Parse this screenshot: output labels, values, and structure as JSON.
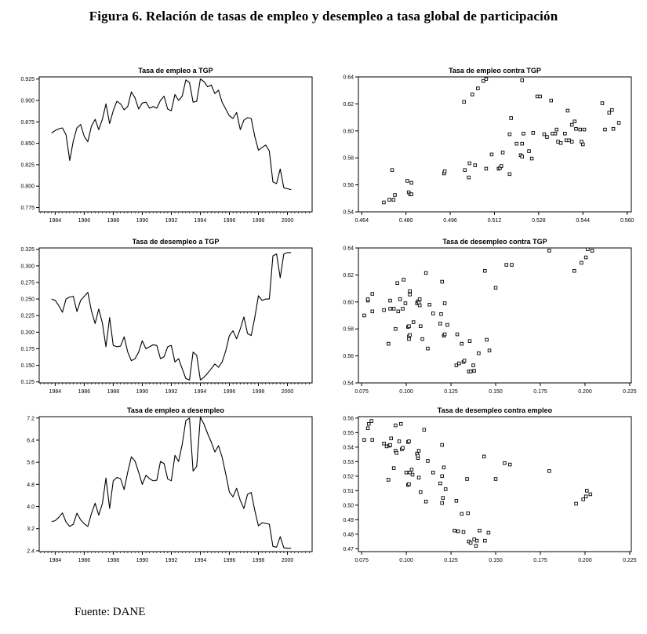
{
  "figure": {
    "title": "Figura 6. Relación de tasas de empleo y desempleo a tasa global de participación",
    "source": "Fuente: DANE"
  },
  "chart_data": [
    {
      "type": "line",
      "title": "Tasa de empleo a TGP",
      "xlabel": "",
      "ylabel": "",
      "x_start": 1983.75,
      "x_step": 0.25,
      "xlim": [
        1982.9,
        2001.7
      ],
      "ylim": [
        0.77,
        0.9275
      ],
      "xticks": [
        1984,
        1986,
        1988,
        1990,
        1992,
        1994,
        1996,
        1998,
        2000
      ],
      "x_decimals": 0,
      "x_minor_step": 0.25,
      "yticks": [
        0.775,
        0.8,
        0.825,
        0.85,
        0.875,
        0.9,
        0.925
      ],
      "y_decimals": 3,
      "grid": false,
      "legend": "none",
      "values": [
        0.862,
        0.865,
        0.867,
        0.868,
        0.86,
        0.83,
        0.853,
        0.868,
        0.872,
        0.858,
        0.852,
        0.87,
        0.878,
        0.866,
        0.878,
        0.896,
        0.873,
        0.888,
        0.899,
        0.896,
        0.889,
        0.893,
        0.91,
        0.903,
        0.89,
        0.897,
        0.898,
        0.891,
        0.893,
        0.891,
        0.9,
        0.905,
        0.89,
        0.888,
        0.907,
        0.9,
        0.905,
        0.924,
        0.921,
        0.898,
        0.899,
        0.925,
        0.922,
        0.916,
        0.918,
        0.908,
        0.912,
        0.898,
        0.89,
        0.882,
        0.879,
        0.886,
        0.866,
        0.877,
        0.88,
        0.879,
        0.858,
        0.842,
        0.845,
        0.848,
        0.841,
        0.805,
        0.803,
        0.82,
        0.798,
        0.797,
        0.796
      ]
    },
    {
      "type": "scatter",
      "title": "Tasa de empleo contra TGP",
      "xlabel": "",
      "ylabel": "",
      "xlim": [
        0.4628,
        0.5615
      ],
      "ylim": [
        0.54,
        0.64
      ],
      "xticks": [
        0.464,
        0.48,
        0.496,
        0.512,
        0.528,
        0.544,
        0.56
      ],
      "x_decimals": 3,
      "yticks": [
        0.54,
        0.56,
        0.58,
        0.6,
        0.62,
        0.64
      ],
      "y_decimals": 2,
      "grid": false,
      "legend": "none",
      "points": [
        [
          0.472,
          0.547
        ],
        [
          0.474,
          0.549
        ],
        [
          0.4755,
          0.549
        ],
        [
          0.476,
          0.5525
        ],
        [
          0.475,
          0.571
        ],
        [
          0.4805,
          0.563
        ],
        [
          0.482,
          0.5615
        ],
        [
          0.481,
          0.5545
        ],
        [
          0.4815,
          0.553
        ],
        [
          0.482,
          0.553
        ],
        [
          0.4938,
          0.5685
        ],
        [
          0.494,
          0.57
        ],
        [
          0.5013,
          0.571
        ],
        [
          0.5027,
          0.5655
        ],
        [
          0.503,
          0.576
        ],
        [
          0.505,
          0.5745
        ],
        [
          0.509,
          0.572
        ],
        [
          0.511,
          0.5825
        ],
        [
          0.5135,
          0.572
        ],
        [
          0.514,
          0.5725
        ],
        [
          0.5145,
          0.574
        ],
        [
          0.515,
          0.584
        ],
        [
          0.5175,
          0.568
        ],
        [
          0.5175,
          0.5975
        ],
        [
          0.518,
          0.6095
        ],
        [
          0.52,
          0.5905
        ],
        [
          0.522,
          0.5905
        ],
        [
          0.5215,
          0.582
        ],
        [
          0.522,
          0.581
        ],
        [
          0.5245,
          0.585
        ],
        [
          0.5255,
          0.5795
        ],
        [
          0.5225,
          0.598
        ],
        [
          0.526,
          0.5985
        ],
        [
          0.5275,
          0.6255
        ],
        [
          0.5285,
          0.6255
        ],
        [
          0.53,
          0.5975
        ],
        [
          0.531,
          0.5955
        ],
        [
          0.5325,
          0.6225
        ],
        [
          0.533,
          0.598
        ],
        [
          0.534,
          0.598
        ],
        [
          0.535,
          0.592
        ],
        [
          0.5345,
          0.601
        ],
        [
          0.536,
          0.591
        ],
        [
          0.5375,
          0.598
        ],
        [
          0.538,
          0.593
        ],
        [
          0.539,
          0.593
        ],
        [
          0.54,
          0.592
        ],
        [
          0.5385,
          0.615
        ],
        [
          0.54,
          0.6045
        ],
        [
          0.541,
          0.607
        ],
        [
          0.5415,
          0.6015
        ],
        [
          0.543,
          0.601
        ],
        [
          0.5435,
          0.592
        ],
        [
          0.544,
          0.59
        ],
        [
          0.5445,
          0.601
        ],
        [
          0.551,
          0.6205
        ],
        [
          0.552,
          0.601
        ],
        [
          0.5535,
          0.6135
        ],
        [
          0.5545,
          0.6155
        ],
        [
          0.555,
          0.6015
        ],
        [
          0.557,
          0.606
        ],
        [
          0.501,
          0.6215
        ],
        [
          0.504,
          0.627
        ],
        [
          0.506,
          0.6315
        ],
        [
          0.508,
          0.637
        ],
        [
          0.509,
          0.6385
        ],
        [
          0.522,
          0.6375
        ]
      ]
    },
    {
      "type": "line",
      "title": "Tasa de desempleo a TGP",
      "xlabel": "",
      "ylabel": "",
      "x_start": 1983.75,
      "x_step": 0.25,
      "xlim": [
        1982.9,
        2001.7
      ],
      "ylim": [
        0.1235,
        0.327
      ],
      "xticks": [
        1984,
        1986,
        1988,
        1990,
        1992,
        1994,
        1996,
        1998,
        2000
      ],
      "x_decimals": 0,
      "x_minor_step": 0.25,
      "yticks": [
        0.125,
        0.15,
        0.175,
        0.2,
        0.225,
        0.25,
        0.275,
        0.3,
        0.325
      ],
      "y_decimals": 3,
      "grid": false,
      "legend": "none",
      "values": [
        0.25,
        0.248,
        0.24,
        0.23,
        0.25,
        0.253,
        0.254,
        0.231,
        0.248,
        0.254,
        0.26,
        0.232,
        0.213,
        0.235,
        0.214,
        0.178,
        0.222,
        0.18,
        0.178,
        0.179,
        0.193,
        0.17,
        0.157,
        0.16,
        0.17,
        0.187,
        0.175,
        0.178,
        0.181,
        0.18,
        0.16,
        0.163,
        0.178,
        0.18,
        0.155,
        0.16,
        0.145,
        0.13,
        0.128,
        0.17,
        0.165,
        0.128,
        0.132,
        0.138,
        0.145,
        0.152,
        0.147,
        0.155,
        0.172,
        0.195,
        0.202,
        0.19,
        0.205,
        0.223,
        0.198,
        0.195,
        0.222,
        0.255,
        0.248,
        0.25,
        0.25,
        0.315,
        0.318,
        0.282,
        0.318,
        0.32,
        0.32
      ]
    },
    {
      "type": "scatter",
      "title": "Tasa de desempleo contra TGP",
      "xlabel": "",
      "ylabel": "",
      "xlim": [
        0.0732,
        0.2259
      ],
      "ylim": [
        0.54,
        0.64
      ],
      "xticks": [
        0.075,
        0.1,
        0.125,
        0.15,
        0.175,
        0.2,
        0.225
      ],
      "x_decimals": 3,
      "yticks": [
        0.54,
        0.56,
        0.58,
        0.6,
        0.62,
        0.64
      ],
      "y_decimals": 2,
      "grid": false,
      "legend": "none",
      "points": [
        [
          0.0765,
          0.59
        ],
        [
          0.0785,
          0.601
        ],
        [
          0.0785,
          0.602
        ],
        [
          0.081,
          0.606
        ],
        [
          0.081,
          0.593
        ],
        [
          0.0875,
          0.594
        ],
        [
          0.09,
          0.569
        ],
        [
          0.091,
          0.601
        ],
        [
          0.091,
          0.595
        ],
        [
          0.093,
          0.595
        ],
        [
          0.094,
          0.58
        ],
        [
          0.095,
          0.614
        ],
        [
          0.0955,
          0.593
        ],
        [
          0.0965,
          0.602
        ],
        [
          0.0985,
          0.6165
        ],
        [
          0.098,
          0.595
        ],
        [
          0.0995,
          0.599
        ],
        [
          0.101,
          0.5815
        ],
        [
          0.1015,
          0.582
        ],
        [
          0.102,
          0.607
        ],
        [
          0.102,
          0.6055
        ],
        [
          0.102,
          0.608
        ],
        [
          0.1015,
          0.5725
        ],
        [
          0.1015,
          0.5745
        ],
        [
          0.102,
          0.5755
        ],
        [
          0.104,
          0.585
        ],
        [
          0.106,
          0.599
        ],
        [
          0.1065,
          0.6005
        ],
        [
          0.107,
          0.5995
        ],
        [
          0.1075,
          0.602
        ],
        [
          0.1075,
          0.5975
        ],
        [
          0.108,
          0.582
        ],
        [
          0.109,
          0.5725
        ],
        [
          0.111,
          0.6215
        ],
        [
          0.112,
          0.5655
        ],
        [
          0.113,
          0.598
        ],
        [
          0.115,
          0.5915
        ],
        [
          0.119,
          0.584
        ],
        [
          0.12,
          0.615
        ],
        [
          0.1195,
          0.591
        ],
        [
          0.121,
          0.575
        ],
        [
          0.1215,
          0.576
        ],
        [
          0.1215,
          0.599
        ],
        [
          0.123,
          0.583
        ],
        [
          0.128,
          0.553
        ],
        [
          0.1285,
          0.576
        ],
        [
          0.1295,
          0.5545
        ],
        [
          0.131,
          0.569
        ],
        [
          0.132,
          0.5555
        ],
        [
          0.1325,
          0.5565
        ],
        [
          0.135,
          0.5485
        ],
        [
          0.136,
          0.5485
        ],
        [
          0.1355,
          0.571
        ],
        [
          0.138,
          0.549
        ],
        [
          0.1375,
          0.553
        ],
        [
          0.1405,
          0.562
        ],
        [
          0.144,
          0.623
        ],
        [
          0.145,
          0.572
        ],
        [
          0.1465,
          0.564
        ],
        [
          0.15,
          0.6105
        ],
        [
          0.156,
          0.6275
        ],
        [
          0.159,
          0.6275
        ],
        [
          0.18,
          0.638
        ],
        [
          0.194,
          0.623
        ],
        [
          0.198,
          0.629
        ],
        [
          0.2005,
          0.633
        ],
        [
          0.2015,
          0.639
        ],
        [
          0.204,
          0.638
        ]
      ]
    },
    {
      "type": "line",
      "title": "Tasa de empleo a desempleo",
      "xlabel": "",
      "ylabel": "",
      "x_start": 1983.75,
      "x_step": 0.25,
      "xlim": [
        1982.9,
        2001.7
      ],
      "ylim": [
        2.37,
        7.25
      ],
      "xticks": [
        1984,
        1986,
        1988,
        1990,
        1992,
        1994,
        1996,
        1998,
        2000
      ],
      "x_decimals": 0,
      "x_minor_step": 0.25,
      "yticks": [
        2.4,
        3.2,
        4.0,
        4.8,
        5.6,
        6.4,
        7.2
      ],
      "y_decimals": 1,
      "grid": false,
      "legend": "none",
      "values": [
        3.45,
        3.49,
        3.61,
        3.77,
        3.44,
        3.28,
        3.36,
        3.76,
        3.52,
        3.38,
        3.28,
        3.75,
        4.12,
        3.69,
        4.1,
        5.03,
        3.93,
        4.93,
        5.05,
        5.01,
        4.61,
        5.25,
        5.8,
        5.64,
        5.24,
        4.8,
        5.13,
        5.01,
        4.93,
        4.95,
        5.63,
        5.55,
        5.0,
        4.93,
        5.85,
        5.63,
        6.24,
        7.11,
        7.2,
        5.28,
        5.45,
        7.23,
        6.98,
        6.64,
        6.33,
        5.97,
        6.2,
        5.79,
        5.17,
        4.52,
        4.35,
        4.66,
        4.22,
        3.93,
        4.44,
        4.51,
        3.86,
        3.3,
        3.41,
        3.39,
        3.36,
        2.56,
        2.53,
        2.91,
        2.51,
        2.49,
        2.49
      ]
    },
    {
      "type": "scatter",
      "title": "Tasa de desempleo contra empleo",
      "xlabel": "",
      "ylabel": "",
      "xlim": [
        0.0732,
        0.2259
      ],
      "ylim": [
        0.468,
        0.561
      ],
      "xticks": [
        0.075,
        0.1,
        0.125,
        0.15,
        0.175,
        0.2,
        0.225
      ],
      "x_decimals": 3,
      "yticks": [
        0.47,
        0.48,
        0.49,
        0.5,
        0.51,
        0.52,
        0.53,
        0.54,
        0.55,
        0.56
      ],
      "y_decimals": 2,
      "grid": false,
      "legend": "none",
      "points": [
        [
          0.0765,
          0.545
        ],
        [
          0.0785,
          0.553
        ],
        [
          0.079,
          0.556
        ],
        [
          0.0805,
          0.558
        ],
        [
          0.081,
          0.545
        ],
        [
          0.0875,
          0.5425
        ],
        [
          0.089,
          0.5405
        ],
        [
          0.09,
          0.5175
        ],
        [
          0.0905,
          0.541
        ],
        [
          0.091,
          0.5415
        ],
        [
          0.0915,
          0.546
        ],
        [
          0.093,
          0.5255
        ],
        [
          0.094,
          0.5375
        ],
        [
          0.094,
          0.555
        ],
        [
          0.0945,
          0.536
        ],
        [
          0.096,
          0.544
        ],
        [
          0.097,
          0.556
        ],
        [
          0.0975,
          0.5385
        ],
        [
          0.098,
          0.5395
        ],
        [
          0.1,
          0.5225
        ],
        [
          0.101,
          0.5435
        ],
        [
          0.1015,
          0.544
        ],
        [
          0.101,
          0.514
        ],
        [
          0.1015,
          0.5145
        ],
        [
          0.102,
          0.5225
        ],
        [
          0.103,
          0.5245
        ],
        [
          0.1035,
          0.521
        ],
        [
          0.106,
          0.5355
        ],
        [
          0.1065,
          0.5325
        ],
        [
          0.1065,
          0.534
        ],
        [
          0.107,
          0.5375
        ],
        [
          0.107,
          0.519
        ],
        [
          0.108,
          0.509
        ],
        [
          0.11,
          0.552
        ],
        [
          0.111,
          0.5025
        ],
        [
          0.112,
          0.5305
        ],
        [
          0.115,
          0.5225
        ],
        [
          0.119,
          0.515
        ],
        [
          0.12,
          0.5415
        ],
        [
          0.12,
          0.52
        ],
        [
          0.12,
          0.5015
        ],
        [
          0.1205,
          0.505
        ],
        [
          0.121,
          0.526
        ],
        [
          0.122,
          0.511
        ],
        [
          0.127,
          0.4825
        ],
        [
          0.128,
          0.503
        ],
        [
          0.129,
          0.482
        ],
        [
          0.131,
          0.494
        ],
        [
          0.132,
          0.4815
        ],
        [
          0.134,
          0.518
        ],
        [
          0.1345,
          0.4945
        ],
        [
          0.135,
          0.475
        ],
        [
          0.136,
          0.474
        ],
        [
          0.138,
          0.4765
        ],
        [
          0.139,
          0.472
        ],
        [
          0.1395,
          0.4755
        ],
        [
          0.141,
          0.4825
        ],
        [
          0.1435,
          0.5335
        ],
        [
          0.144,
          0.4755
        ],
        [
          0.146,
          0.481
        ],
        [
          0.15,
          0.518
        ],
        [
          0.155,
          0.529
        ],
        [
          0.158,
          0.528
        ],
        [
          0.18,
          0.5235
        ],
        [
          0.195,
          0.501
        ],
        [
          0.199,
          0.504
        ],
        [
          0.2005,
          0.506
        ],
        [
          0.201,
          0.51
        ],
        [
          0.203,
          0.5075
        ]
      ]
    }
  ]
}
